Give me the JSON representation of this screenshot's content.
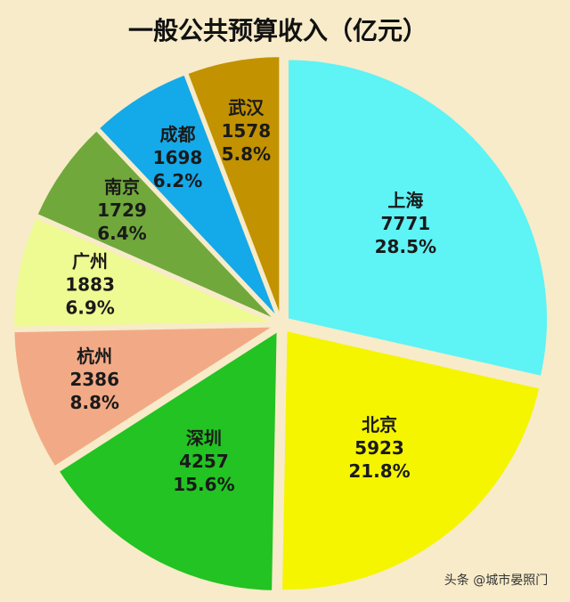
{
  "chart_data": {
    "type": "pie",
    "title": "一般公共预算收入（亿元）",
    "categories": [
      "上海",
      "北京",
      "深圳",
      "杭州",
      "广州",
      "南京",
      "成都",
      "武汉"
    ],
    "values": [
      7771,
      5923,
      4257,
      2386,
      1883,
      1729,
      1698,
      1578
    ],
    "percent_labels": [
      "28.5%",
      "21.8%",
      "15.6%",
      "8.8%",
      "6.9%",
      "6.4%",
      "6.2%",
      "5.8%"
    ],
    "colors": [
      "#5ef3f5",
      "#f5f500",
      "#22c322",
      "#f2aa86",
      "#eefa92",
      "#70a83c",
      "#14a9e9",
      "#c29200"
    ]
  },
  "watermark": "头条 @城市晏照门"
}
